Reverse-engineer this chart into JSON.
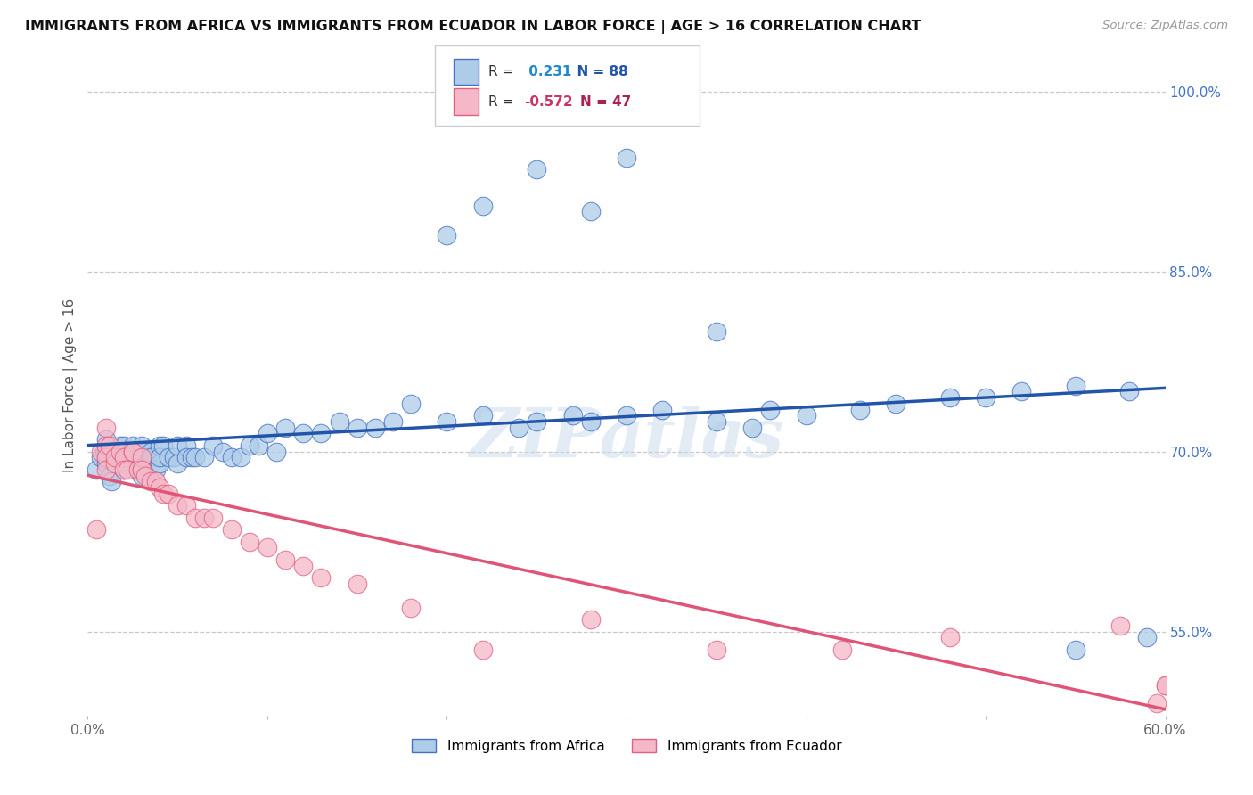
{
  "title": "IMMIGRANTS FROM AFRICA VS IMMIGRANTS FROM ECUADOR IN LABOR FORCE | AGE > 16 CORRELATION CHART",
  "source": "Source: ZipAtlas.com",
  "ylabel": "In Labor Force | Age > 16",
  "xlim": [
    0.0,
    0.6
  ],
  "ylim": [
    0.48,
    1.03
  ],
  "right_ytick_pos": [
    0.55,
    0.7,
    0.85,
    1.0
  ],
  "right_ytick_labels": [
    "55.0%",
    "70.0%",
    "85.0%",
    "100.0%"
  ],
  "xtick_positions": [
    0.0,
    0.1,
    0.2,
    0.3,
    0.4,
    0.5,
    0.6
  ],
  "xticklabels": [
    "0.0%",
    "",
    "",
    "",
    "",
    "",
    "60.0%"
  ],
  "africa_R": 0.231,
  "africa_N": 88,
  "ecuador_R": -0.572,
  "ecuador_N": 47,
  "africa_color": "#aecce8",
  "africa_edge_color": "#4472c4",
  "ecuador_color": "#f4b8c8",
  "ecuador_edge_color": "#e06080",
  "africa_line_color": "#2255aa",
  "ecuador_line_color": "#e05575",
  "watermark": "ZIPatlas",
  "background_color": "#ffffff",
  "grid_color": "#c8c8c8",
  "africa_x": [
    0.005,
    0.007,
    0.009,
    0.01,
    0.01,
    0.01,
    0.01,
    0.012,
    0.013,
    0.015,
    0.015,
    0.018,
    0.02,
    0.02,
    0.02,
    0.02,
    0.02,
    0.02,
    0.022,
    0.025,
    0.025,
    0.025,
    0.028,
    0.03,
    0.03,
    0.03,
    0.03,
    0.03,
    0.032,
    0.035,
    0.035,
    0.038,
    0.04,
    0.04,
    0.04,
    0.042,
    0.045,
    0.048,
    0.05,
    0.05,
    0.055,
    0.055,
    0.058,
    0.06,
    0.065,
    0.07,
    0.075,
    0.08,
    0.085,
    0.09,
    0.095,
    0.1,
    0.105,
    0.11,
    0.12,
    0.13,
    0.14,
    0.15,
    0.16,
    0.17,
    0.18,
    0.2,
    0.22,
    0.24,
    0.25,
    0.27,
    0.28,
    0.3,
    0.32,
    0.35,
    0.37,
    0.38,
    0.4,
    0.43,
    0.45,
    0.48,
    0.5,
    0.52,
    0.55,
    0.58,
    0.2,
    0.22,
    0.25,
    0.28,
    0.3,
    0.35,
    0.55,
    0.59
  ],
  "africa_y": [
    0.685,
    0.695,
    0.7,
    0.71,
    0.69,
    0.695,
    0.7,
    0.68,
    0.675,
    0.69,
    0.695,
    0.705,
    0.7,
    0.695,
    0.685,
    0.705,
    0.695,
    0.7,
    0.695,
    0.705,
    0.695,
    0.7,
    0.7,
    0.7,
    0.705,
    0.695,
    0.685,
    0.68,
    0.695,
    0.7,
    0.695,
    0.685,
    0.69,
    0.705,
    0.695,
    0.705,
    0.695,
    0.695,
    0.69,
    0.705,
    0.705,
    0.695,
    0.695,
    0.695,
    0.695,
    0.705,
    0.7,
    0.695,
    0.695,
    0.705,
    0.705,
    0.715,
    0.7,
    0.72,
    0.715,
    0.715,
    0.725,
    0.72,
    0.72,
    0.725,
    0.74,
    0.725,
    0.73,
    0.72,
    0.725,
    0.73,
    0.725,
    0.73,
    0.735,
    0.725,
    0.72,
    0.735,
    0.73,
    0.735,
    0.74,
    0.745,
    0.745,
    0.75,
    0.755,
    0.75,
    0.88,
    0.905,
    0.935,
    0.9,
    0.945,
    0.8,
    0.535,
    0.545
  ],
  "ecuador_x": [
    0.005,
    0.007,
    0.01,
    0.01,
    0.01,
    0.01,
    0.012,
    0.015,
    0.015,
    0.018,
    0.02,
    0.02,
    0.022,
    0.025,
    0.025,
    0.028,
    0.03,
    0.03,
    0.03,
    0.032,
    0.035,
    0.038,
    0.04,
    0.042,
    0.045,
    0.05,
    0.055,
    0.06,
    0.065,
    0.07,
    0.08,
    0.09,
    0.1,
    0.11,
    0.12,
    0.13,
    0.15,
    0.18,
    0.22,
    0.28,
    0.35,
    0.42,
    0.48,
    0.575,
    0.595,
    0.6,
    0.6
  ],
  "ecuador_y": [
    0.635,
    0.7,
    0.72,
    0.705,
    0.695,
    0.685,
    0.705,
    0.69,
    0.695,
    0.7,
    0.695,
    0.685,
    0.685,
    0.7,
    0.7,
    0.685,
    0.685,
    0.695,
    0.685,
    0.68,
    0.675,
    0.675,
    0.67,
    0.665,
    0.665,
    0.655,
    0.655,
    0.645,
    0.645,
    0.645,
    0.635,
    0.625,
    0.62,
    0.61,
    0.605,
    0.595,
    0.59,
    0.57,
    0.535,
    0.56,
    0.535,
    0.535,
    0.545,
    0.555,
    0.49,
    0.505,
    0.505
  ]
}
